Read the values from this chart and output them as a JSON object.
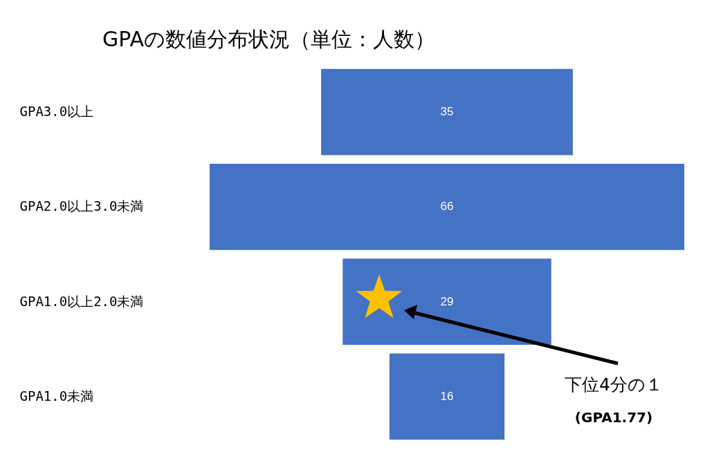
{
  "chart_data": {
    "type": "other",
    "title": "GPAの数値分布状況（単位：人数）",
    "categories": [
      "GPA3.0以上",
      "GPA2.0以上3.0未満",
      "GPA1.0以上2.0未満",
      "GPA1.0未満"
    ],
    "values": [
      35,
      66,
      29,
      16
    ],
    "color": "#4472c4",
    "data_labels": true,
    "annotations": [
      "下位4分の１",
      "(GPA1.77)"
    ]
  }
}
